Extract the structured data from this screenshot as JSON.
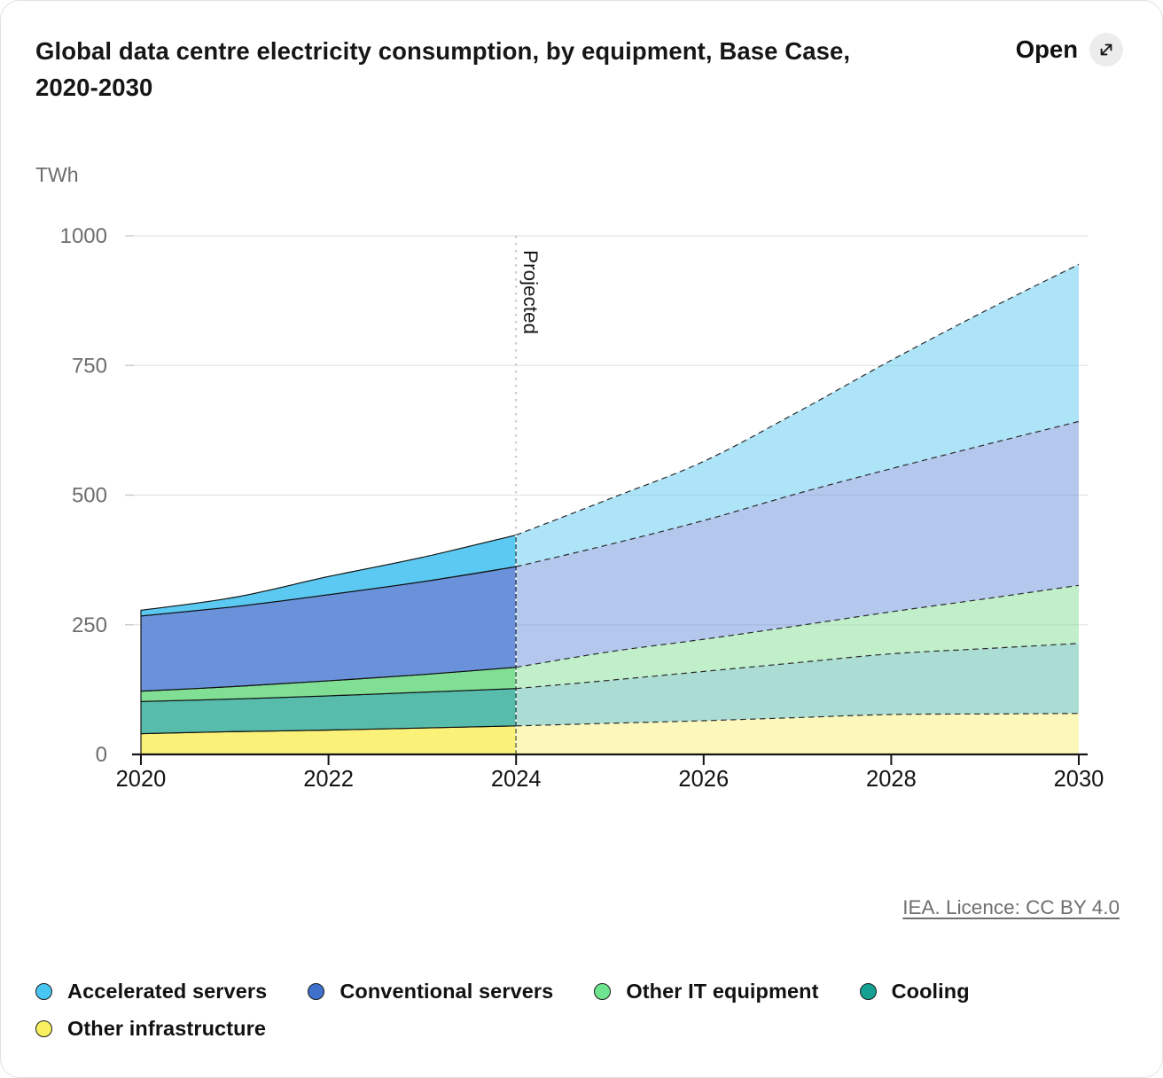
{
  "header": {
    "title": "Global data centre electricity consumption, by equipment, Base Case, 2020-2030",
    "open_label": "Open"
  },
  "footer": {
    "licence_link": "IEA. Licence: CC BY 4.0"
  },
  "chart_data": {
    "type": "area",
    "stacked": true,
    "title": "Global data centre electricity consumption, by equipment, Base Case, 2020-2030",
    "xlabel": "",
    "ylabel": "TWh",
    "ylim": [
      0,
      1000
    ],
    "y_ticks": [
      0,
      250,
      500,
      750,
      1000
    ],
    "x": [
      2020,
      2021,
      2022,
      2023,
      2024,
      2025,
      2026,
      2027,
      2028,
      2029,
      2030
    ],
    "x_ticks": [
      2020,
      2022,
      2024,
      2026,
      2028,
      2030
    ],
    "grid": true,
    "legend_position": "bottom",
    "projected": {
      "from": 2024,
      "label": "Projected"
    },
    "series": [
      {
        "name": "Other infrastructure",
        "values": [
          40,
          44,
          47,
          51,
          55,
          60,
          65,
          71,
          77,
          78,
          79
        ],
        "color": "#FAF178",
        "legend_color": "#F8F05E"
      },
      {
        "name": "Cooling",
        "values": [
          62,
          63,
          66,
          69,
          72,
          83,
          95,
          106,
          117,
          126,
          135
        ],
        "color": "#57BCAB",
        "legend_color": "#14A193"
      },
      {
        "name": "Other IT equipment",
        "values": [
          20,
          24,
          29,
          34,
          41,
          55,
          62,
          71,
          81,
          96,
          112
        ],
        "color": "#81DF95",
        "legend_color": "#6FE48E"
      },
      {
        "name": "Conventional servers",
        "values": [
          145,
          154,
          166,
          179,
          194,
          207,
          229,
          255,
          276,
          297,
          316
        ],
        "color": "#6992DB",
        "legend_color": "#3F70CC"
      },
      {
        "name": "Accelerated servers",
        "values": [
          11,
          18,
          35,
          47,
          61,
          88,
          114,
          157,
          209,
          258,
          303
        ],
        "color": "#5BC9F1",
        "legend_color": "#49C5F1"
      }
    ],
    "legend_order": [
      "Accelerated servers",
      "Conventional servers",
      "Other IT equipment",
      "Cooling",
      "Other infrastructure"
    ],
    "colors": {
      "grid_line": "#e4e4e4",
      "axis_line": "#141414",
      "y_tick_text": "#6d6d6d",
      "x_tick_text": "#141414",
      "historical_outline": "#101010",
      "projected_outline": "#2b2b2b"
    }
  }
}
